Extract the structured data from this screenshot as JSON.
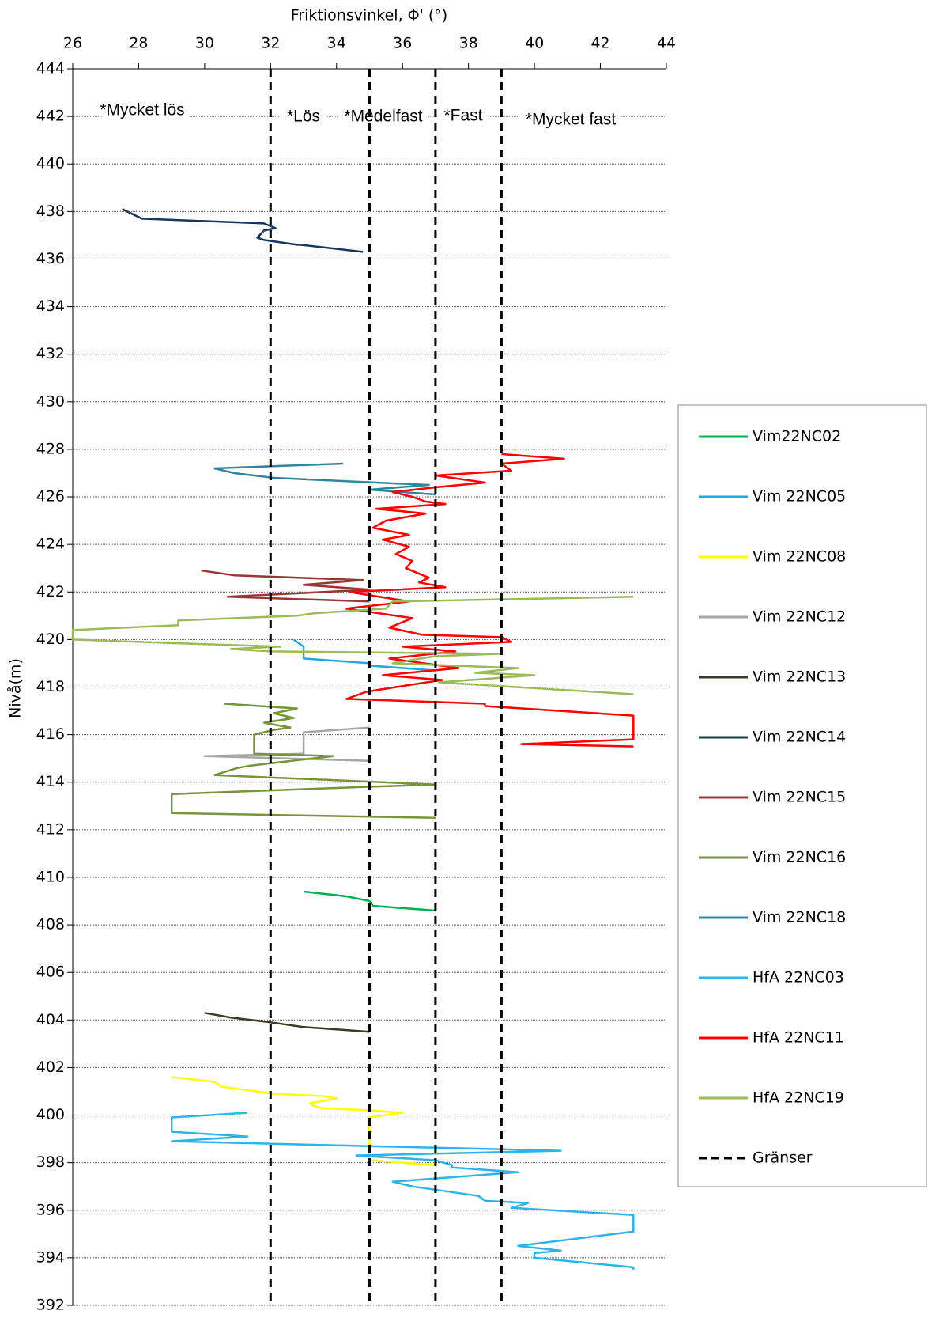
{
  "chart_data": {
    "type": "line",
    "xlabel": "Friktionsvinkel, Φ' (°)",
    "ylabel": "Nivå(m)",
    "annotations": [
      "*Mycket lös",
      "*Lös",
      "*Medelfast",
      "*Fast",
      "*Mycket fast"
    ],
    "xlim": [
      26,
      44
    ],
    "xticks": [
      26,
      28,
      30,
      32,
      34,
      36,
      38,
      40,
      42,
      44
    ],
    "ylim": [
      392,
      444
    ],
    "yticks": [
      392,
      394,
      396,
      398,
      400,
      402,
      404,
      406,
      408,
      410,
      412,
      414,
      416,
      418,
      420,
      422,
      424,
      426,
      428,
      430,
      432,
      434,
      436,
      438,
      440,
      442,
      444
    ],
    "grid": true,
    "legend": "right",
    "series": [
      {
        "name": "Vim22NC02",
        "color": "#00b050",
        "x": [
          33,
          34.3,
          35,
          35.1,
          37
        ],
        "values": [
          409.4,
          409.2,
          409.0,
          408.8,
          408.6
        ]
      },
      {
        "name": "Vim 22NC05",
        "color": "#1ea8e4",
        "x": [
          32.7,
          33,
          33,
          35,
          35,
          37,
          37
        ],
        "values": [
          420.0,
          419.7,
          419.2,
          419.0,
          418.9,
          418.7,
          418.6
        ]
      },
      {
        "name": "Vim 22NC08",
        "color": "#ffff00",
        "x": [
          29,
          30.3,
          30.5,
          32.1,
          33.6,
          34,
          33.2,
          33.3,
          33.5,
          35,
          36,
          35,
          35,
          35,
          35,
          37
        ],
        "values": [
          401.6,
          401.4,
          401.2,
          400.9,
          400.8,
          400.7,
          400.5,
          400.4,
          400.3,
          400.2,
          400.1,
          399.9,
          399.8,
          398.2,
          398.1,
          397.9
        ]
      },
      {
        "name": "Vim 22NC12",
        "color": "#a6a6a6",
        "x": [
          35,
          33,
          33,
          30,
          35
        ],
        "values": [
          416.3,
          416.1,
          415.2,
          415.1,
          414.9
        ]
      },
      {
        "name": "Vim 22NC13",
        "color": "#3f3a26",
        "x": [
          30,
          30.8,
          32,
          33,
          35
        ],
        "values": [
          404.3,
          404.1,
          403.9,
          403.7,
          403.5
        ]
      },
      {
        "name": "Vim 22NC14",
        "color": "#17375e",
        "x": [
          27.5,
          28.1,
          31.8,
          32.15,
          31.8,
          31.6,
          31.8,
          32.8,
          32.9,
          34.8
        ],
        "values": [
          438.1,
          437.7,
          437.5,
          437.3,
          437.2,
          436.9,
          436.8,
          436.6,
          436.6,
          436.3
        ]
      },
      {
        "name": "Vim 22NC15",
        "color": "#953735",
        "x": [
          29.9,
          30.9,
          34.8,
          33,
          35,
          33.6,
          30.7,
          35
        ],
        "values": [
          422.9,
          422.7,
          422.5,
          422.3,
          422.1,
          422.0,
          421.8,
          421.6
        ]
      },
      {
        "name": "Vim 22NC16",
        "color": "#77933c",
        "x": [
          30.6,
          32.8,
          32.1,
          32.7,
          31.8,
          32.6,
          32.1,
          31.5,
          31.5,
          33.9,
          31.4,
          31,
          30.3,
          37,
          34.8,
          29,
          29,
          37
        ],
        "values": [
          417.3,
          417.1,
          416.9,
          416.7,
          416.5,
          416.3,
          416.2,
          416.0,
          415.2,
          415.1,
          414.7,
          414.6,
          414.3,
          413.9,
          413.8,
          413.5,
          412.7,
          412.5
        ]
      },
      {
        "name": "Vim 22NC18",
        "color": "#31859c",
        "x": [
          34.2,
          30.3,
          30.9,
          32.1,
          36.8,
          35,
          37
        ],
        "values": [
          427.4,
          427.2,
          427.0,
          426.8,
          426.5,
          426.3,
          426.1
        ]
      },
      {
        "name": "HfA 22NC03",
        "color": "#2db3ea",
        "x": [
          31.3,
          29,
          29,
          31.3,
          29,
          40.8,
          34.6,
          37,
          37.5,
          37.5,
          39.5,
          35.7,
          36.3,
          38.3,
          38.5,
          39.8,
          39.3,
          43,
          43,
          39.5,
          40.8,
          40,
          40,
          43,
          43
        ],
        "values": [
          400.1,
          399.9,
          399.3,
          399.1,
          398.9,
          398.5,
          398.3,
          398.1,
          397.9,
          397.8,
          397.6,
          397.2,
          397.0,
          396.6,
          396.4,
          396.3,
          396.1,
          395.8,
          395.1,
          394.5,
          394.3,
          394.2,
          394.0,
          393.6,
          393.5
        ]
      },
      {
        "name": "HfA 22NC11",
        "color": "#ff0000",
        "x": [
          39,
          40.9,
          39,
          39.3,
          37,
          38.5,
          37,
          35.7,
          36.3,
          36.7,
          37.3,
          35.2,
          36.7,
          35.5,
          35.1,
          36.2,
          35.4,
          36.2,
          35.8,
          36.3,
          36.1,
          36.8,
          36.5,
          37.3,
          34.4,
          36.2,
          34.3,
          36.3,
          35.6,
          36.6,
          39,
          39.3,
          36,
          37.6,
          35.6,
          37.7,
          35.4,
          37.2,
          35.8,
          34.9,
          34.3,
          38.5,
          38.5,
          43,
          43,
          39.6,
          43
        ],
        "values": [
          427.8,
          427.6,
          427.4,
          427.1,
          426.9,
          426.6,
          426.4,
          426.2,
          426.0,
          425.8,
          425.7,
          425.5,
          425.3,
          425.0,
          424.7,
          424.4,
          424.2,
          423.9,
          423.6,
          423.3,
          423.0,
          422.6,
          422.4,
          422.2,
          422.0,
          421.6,
          421.3,
          420.9,
          420.5,
          420.2,
          420.1,
          419.9,
          419.7,
          419.5,
          419.2,
          418.8,
          418.5,
          418.3,
          418.0,
          417.8,
          417.5,
          417.3,
          417.2,
          416.8,
          415.8,
          415.6,
          415.5
        ]
      },
      {
        "name": "HfA 22NC19",
        "color": "#9bbb59",
        "x": [
          43,
          35.7,
          35.5,
          33.3,
          32.8,
          29.2,
          29.2,
          26,
          26,
          30.1,
          32.3,
          30.8,
          32,
          39,
          37,
          35.7,
          39.5,
          38.2,
          40,
          37.1,
          43
        ],
        "values": [
          421.8,
          421.6,
          421.3,
          421.1,
          421.0,
          420.8,
          420.6,
          420.4,
          420.0,
          419.8,
          419.7,
          419.6,
          419.5,
          419.4,
          419.3,
          419.0,
          418.8,
          418.6,
          418.5,
          418.2,
          417.7
        ]
      },
      {
        "name": "Gränser",
        "color": "#000000",
        "dashed": true,
        "x": [
          32,
          32,
          null,
          35,
          35,
          null,
          37,
          37,
          null,
          39,
          39
        ],
        "values": [
          444,
          392,
          null,
          444,
          392,
          null,
          444,
          392,
          null,
          444,
          392
        ]
      }
    ]
  }
}
